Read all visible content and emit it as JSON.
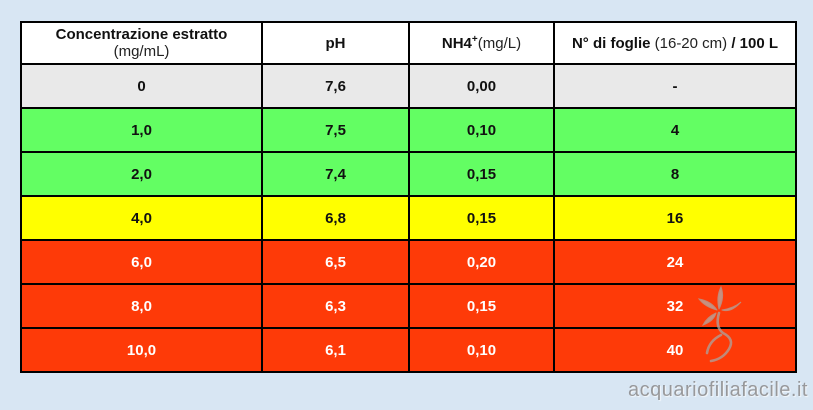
{
  "page": {
    "background_color": "#d8e6f3",
    "border_color": "#000000"
  },
  "table": {
    "headers": [
      {
        "name": "concentrazione-estratto",
        "segments": [
          {
            "t": "Concentrazione estratto",
            "style": "bold"
          },
          {
            "t": " (mg/mL)",
            "style": "regular"
          }
        ]
      },
      {
        "name": "ph",
        "segments": [
          {
            "t": "pH",
            "style": "bold"
          }
        ]
      },
      {
        "name": "nh4",
        "segments": [
          {
            "t": "NH4",
            "style": "bold"
          },
          {
            "t": "+",
            "style": "sup"
          },
          {
            "t": "(mg/L)",
            "style": "regular"
          }
        ]
      },
      {
        "name": "n-di-foglie",
        "segments": [
          {
            "t": "N° di foglie",
            "style": "bold"
          },
          {
            "t": " (16-20 cm) ",
            "style": "regular"
          },
          {
            "t": "/ 100 L",
            "style": "bold"
          }
        ]
      }
    ],
    "rows": [
      {
        "color": "gray",
        "cells": [
          "0",
          "7,6",
          "0,00",
          "-"
        ]
      },
      {
        "color": "green",
        "cells": [
          "1,0",
          "7,5",
          "0,10",
          "4"
        ]
      },
      {
        "color": "green",
        "cells": [
          "2,0",
          "7,4",
          "0,15",
          "8"
        ]
      },
      {
        "color": "yellow",
        "cells": [
          "4,0",
          "6,8",
          "0,15",
          "16"
        ]
      },
      {
        "color": "red",
        "cells": [
          "6,0",
          "6,5",
          "0,20",
          "24"
        ]
      },
      {
        "color": "red",
        "cells": [
          "8,0",
          "6,3",
          "0,15",
          "32"
        ]
      },
      {
        "color": "red",
        "cells": [
          "10,0",
          "6,1",
          "0,10",
          "40"
        ]
      }
    ],
    "row_colors": {
      "gray": "#e9e9e9",
      "green": "#63fe63",
      "yellow": "#ffff00",
      "red": "#fe3a08"
    }
  },
  "watermark": {
    "text": "acquariofiliafacile.it",
    "logo": "plant-sprout-logo"
  }
}
